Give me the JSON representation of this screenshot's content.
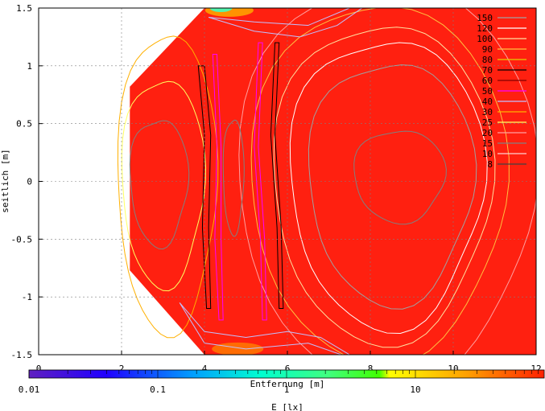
{
  "chart_data": {
    "type": "heatmap",
    "title": "",
    "xlabel": "Entfernung [m]",
    "ylabel": "seitlich [m]",
    "xlim": [
      0,
      12
    ],
    "ylim": [
      -1.5,
      1.5
    ],
    "x_ticks": [
      "0",
      "2",
      "4",
      "6",
      "8",
      "10",
      "12"
    ],
    "y_ticks": [
      "1.5",
      "1",
      "0.5",
      "0",
      "-0.5",
      "-1",
      "-1.5"
    ],
    "grid": true,
    "legend_position": "top-right",
    "contour_levels": [
      "150",
      "120",
      "100",
      "90",
      "80",
      "70",
      "60",
      "50",
      "40",
      "30",
      "25",
      "20",
      "15",
      "10",
      "8"
    ],
    "contour_colors": [
      "#a0a0a0",
      "#ffffff",
      "#ffe0a0",
      "#ffc040",
      "#e0d000",
      "#000000",
      "#800000",
      "#ff00ff",
      "#c0c0ff",
      "#ffb000",
      "#ffff60",
      "#ffa0a0",
      "#808080",
      "#ffd0d0",
      "#404040"
    ],
    "colorbar": {
      "label": "E [lx]",
      "ticks": [
        "0.01",
        "0.1",
        "1",
        "10"
      ],
      "scale": "log",
      "range": [
        0.01,
        100
      ]
    },
    "field_color": "#ff2010",
    "data_region": {
      "x_range": [
        2.2,
        12
      ],
      "y_range": [
        -1.5,
        1.5
      ],
      "note_shape": "truncated left corners"
    }
  }
}
